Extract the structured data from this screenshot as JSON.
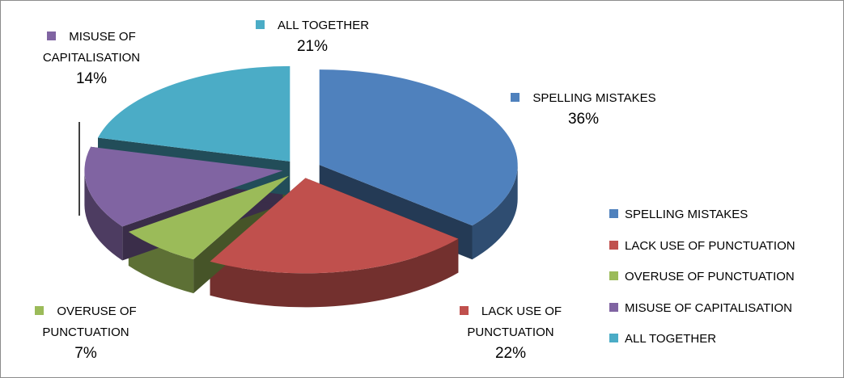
{
  "chart_data": {
    "type": "pie",
    "categories": [
      "SPELLING MISTAKES",
      "LACK USE OF PUNCTUATION",
      "OVERUSE OF PUNCTUATION",
      "MISUSE OF CAPITALISATION",
      "ALL TOGETHER"
    ],
    "values": [
      36,
      22,
      7,
      14,
      21
    ],
    "value_labels": [
      "36%",
      "22%",
      "7%",
      "14%",
      "21%"
    ],
    "colors": [
      "#4f81bd",
      "#c0504d",
      "#9bbb59",
      "#8064a2",
      "#4bacc6"
    ],
    "legend": "right"
  }
}
